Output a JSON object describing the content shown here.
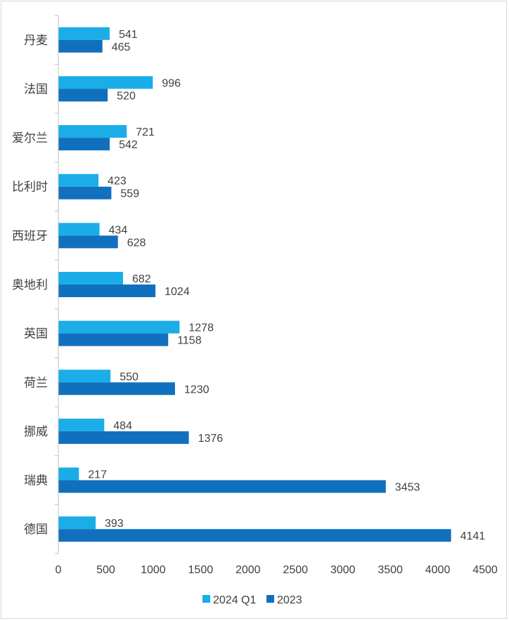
{
  "chart_data": {
    "type": "bar",
    "orientation": "horizontal",
    "categories": [
      "丹麦",
      "法国",
      "爱尔兰",
      "比利时",
      "西班牙",
      "奥地利",
      "英国",
      "荷兰",
      "挪威",
      "瑞典",
      "德国"
    ],
    "series": [
      {
        "name": "2024 Q1",
        "color": "#1AADE8",
        "values": [
          541,
          996,
          721,
          423,
          434,
          682,
          1278,
          550,
          484,
          217,
          393
        ]
      },
      {
        "name": "2023",
        "color": "#1170BE",
        "values": [
          465,
          520,
          542,
          559,
          628,
          1024,
          1158,
          1230,
          1376,
          3453,
          4141
        ]
      }
    ],
    "xlim": [
      0,
      4500
    ],
    "xticks": [
      0,
      500,
      1000,
      1500,
      2000,
      2500,
      3000,
      3500,
      4000,
      4500
    ],
    "title": "",
    "xlabel": "",
    "ylabel": "",
    "grid": false,
    "legend_position": "bottom",
    "data_labels": true
  }
}
